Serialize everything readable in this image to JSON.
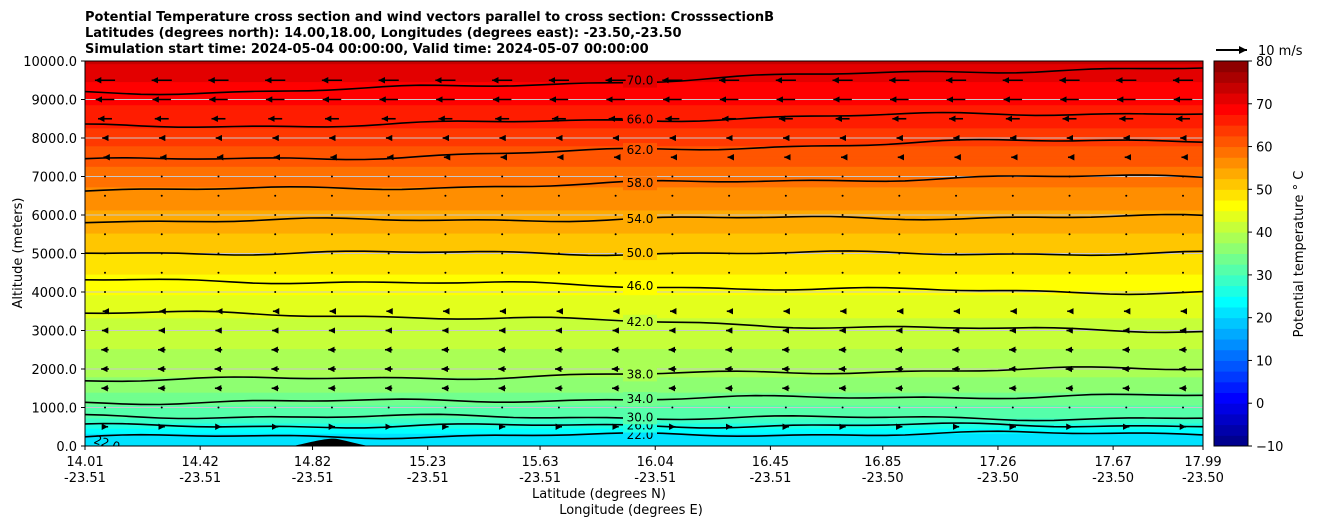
{
  "chart_data": {
    "type": "heatmap",
    "title_lines": [
      "Potential Temperature cross section and wind vectors parallel to cross section: CrosssectionB",
      "Latitudes (degrees north): 14.00,18.00, Longitudes (degrees east): -23.50,-23.50",
      "Simulation start time: 2024-05-04 00:00:00, Valid time: 2024-05-07 00:00:00"
    ],
    "ylabel": "Altitude (meters)",
    "xlabel": "Latitude (degrees N)",
    "xlabel2": "Longitude (degrees E)",
    "ylim": [
      0,
      10000
    ],
    "yticks": [
      "0.0",
      "1000.0",
      "2000.0",
      "3000.0",
      "4000.0",
      "5000.0",
      "6000.0",
      "7000.0",
      "8000.0",
      "9000.0",
      "10000.0"
    ],
    "xlim": [
      14.01,
      17.99
    ],
    "xticks_lat": [
      "14.01",
      "14.42",
      "14.82",
      "15.23",
      "15.63",
      "16.04",
      "16.45",
      "16.85",
      "17.26",
      "17.67",
      "17.99"
    ],
    "xticks_lon": [
      "-23.51",
      "-23.51",
      "-23.51",
      "-23.51",
      "-23.51",
      "-23.51",
      "-23.51",
      "-23.50",
      "-23.50",
      "-23.50",
      "-23.50"
    ],
    "colorbar": {
      "label": "Potential temperature $^\\circ$C",
      "label_text": "Potential temperature ° C",
      "range": [
        -10,
        80
      ],
      "ticks": [
        "−10",
        "0",
        "10",
        "20",
        "30",
        "40",
        "50",
        "60",
        "70",
        "80"
      ]
    },
    "quiver_key": "10 m/s",
    "contours": [
      {
        "level": 22,
        "label": "22.0",
        "left": 240,
        "right": 330
      },
      {
        "level": 26,
        "label": "26.0",
        "left": 520,
        "right": 540
      },
      {
        "level": 30,
        "label": "30.0",
        "left": 770,
        "right": 720
      },
      {
        "level": 34,
        "label": "34.0",
        "left": 1140,
        "right": 1300
      },
      {
        "level": 38,
        "label": "38.0",
        "left": 1720,
        "right": 2000
      },
      {
        "level": 42,
        "label": "42.0",
        "left": 3450,
        "right": 3000
      },
      {
        "level": 46,
        "label": "46.0",
        "left": 4300,
        "right": 4000
      },
      {
        "level": 50,
        "label": "50.0",
        "left": 5020,
        "right": 5000
      },
      {
        "level": 54,
        "label": "54.0",
        "left": 5850,
        "right": 5950
      },
      {
        "level": 58,
        "label": "58.0",
        "left": 6650,
        "right": 7000
      },
      {
        "level": 62,
        "label": "62.0",
        "left": 7430,
        "right": 7950
      },
      {
        "level": 66,
        "label": "66.0",
        "left": 8300,
        "right": 8650
      },
      {
        "level": 70,
        "label": "70.0",
        "left": 9180,
        "right": 9800
      }
    ],
    "wind_rows": [
      {
        "z": 9500,
        "u": -6.5
      },
      {
        "z": 9000,
        "u": -6.0
      },
      {
        "z": 8500,
        "u": -4.5
      },
      {
        "z": 8000,
        "u": -1.8
      },
      {
        "z": 7500,
        "u": -1.0
      },
      {
        "z": 7000,
        "u": -0.4
      },
      {
        "z": 6500,
        "u": 0.2
      },
      {
        "z": 6000,
        "u": 0.3
      },
      {
        "z": 5500,
        "u": 0.2
      },
      {
        "z": 5000,
        "u": 0.1
      },
      {
        "z": 4500,
        "u": 0.1
      },
      {
        "z": 4000,
        "u": -0.4
      },
      {
        "z": 3500,
        "u": -1.5
      },
      {
        "z": 3000,
        "u": -2.0
      },
      {
        "z": 2500,
        "u": -2.4
      },
      {
        "z": 2000,
        "u": -2.5
      },
      {
        "z": 1500,
        "u": -2.3
      },
      {
        "z": 1000,
        "u": 0.3
      },
      {
        "z": 500,
        "u": 2.0
      }
    ],
    "terrain_peak_altitude": 180,
    "terrain_peak_lat": 15.0
  }
}
